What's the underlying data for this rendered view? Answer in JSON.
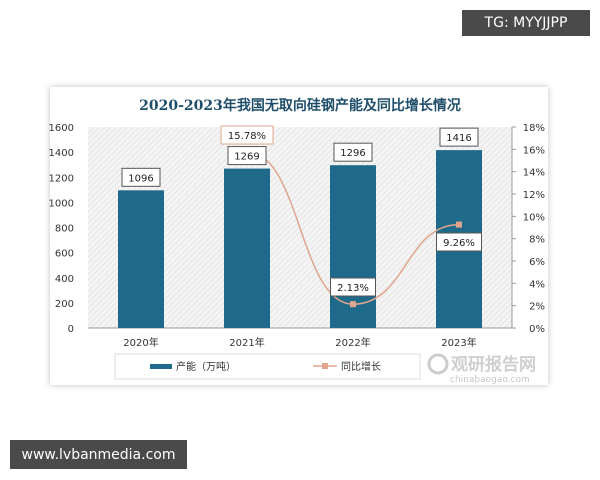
{
  "overlay": {
    "top_right": "TG: MYYJJPP",
    "bottom_left": "www.lvbanmedia.com"
  },
  "watermark": {
    "cn": "观研报告网",
    "en": "chinabaogao.com"
  },
  "chart_data": {
    "type": "bar+line",
    "title": "2020-2023年我国无取向硅钢产能及同比增长情况",
    "categories": [
      "2020年",
      "2021年",
      "2022年",
      "2023年"
    ],
    "series": [
      {
        "name": "产能（万吨）",
        "type": "bar",
        "axis": "left",
        "values": [
          1096,
          1269,
          1296,
          1416
        ],
        "labels": [
          "1096",
          "1269",
          "1296",
          "1416"
        ],
        "color": "#1f6a8a"
      },
      {
        "name": "同比增长",
        "type": "line",
        "axis": "right",
        "values": [
          null,
          15.78,
          2.13,
          9.26
        ],
        "labels": [
          "",
          "15.78%",
          "2.13%",
          "9.26%"
        ],
        "color": "#e0a58c"
      }
    ],
    "yleft": {
      "range": [
        0,
        1600
      ],
      "ticks": [
        "0",
        "200",
        "400",
        "600",
        "800",
        "1000",
        "1200",
        "1400",
        "1600"
      ]
    },
    "yright": {
      "range": [
        0,
        18
      ],
      "ticks": [
        "0%",
        "2%",
        "4%",
        "6%",
        "8%",
        "10%",
        "12%",
        "14%",
        "16%",
        "18%"
      ]
    },
    "legend": "bottom",
    "grid": false
  }
}
